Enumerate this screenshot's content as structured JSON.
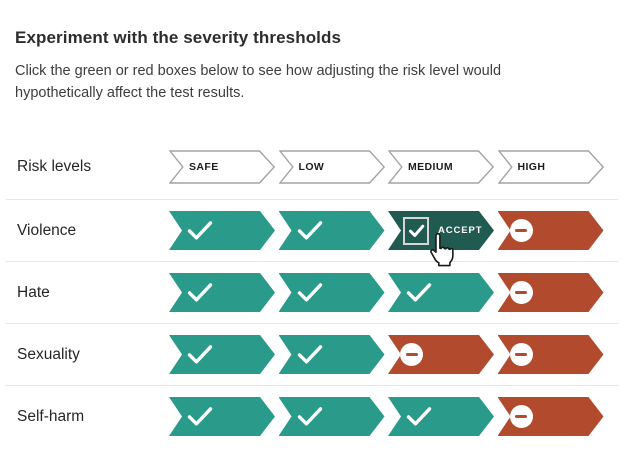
{
  "header": {
    "title": "Experiment with the severity thresholds",
    "description_lines": [
      "Click the green or red boxes below to see how adjusting the risk level would",
      "hypothetically affect the test results."
    ]
  },
  "risk_levels": {
    "label": "Risk levels",
    "levels": [
      "SAFE",
      "LOW",
      "MEDIUM",
      "HIGH"
    ]
  },
  "rows": [
    {
      "label": "Violence",
      "cells": [
        {
          "state": "accept",
          "icon": "check"
        },
        {
          "state": "accept",
          "icon": "check"
        },
        {
          "state": "accept-active",
          "icon": "checkbox",
          "label": "ACCEPT",
          "cursor": true
        },
        {
          "state": "reject",
          "icon": "minus"
        }
      ]
    },
    {
      "label": "Hate",
      "cells": [
        {
          "state": "accept",
          "icon": "check"
        },
        {
          "state": "accept",
          "icon": "check"
        },
        {
          "state": "accept",
          "icon": "check"
        },
        {
          "state": "reject",
          "icon": "minus"
        }
      ]
    },
    {
      "label": "Sexuality",
      "cells": [
        {
          "state": "accept",
          "icon": "check"
        },
        {
          "state": "accept",
          "icon": "check"
        },
        {
          "state": "reject",
          "icon": "minus"
        },
        {
          "state": "reject",
          "icon": "minus"
        }
      ]
    },
    {
      "label": "Self-harm",
      "cells": [
        {
          "state": "accept",
          "icon": "check"
        },
        {
          "state": "accept",
          "icon": "check"
        },
        {
          "state": "accept",
          "icon": "check"
        },
        {
          "state": "reject",
          "icon": "minus"
        }
      ]
    }
  ],
  "colors": {
    "accept": "#2a9a8b",
    "accept_active": "#215a50",
    "reject": "#b24a2d",
    "header_chevron_border": "#a3a3a3",
    "divider": "#e7e7e7",
    "text": "#2b2b2b"
  }
}
